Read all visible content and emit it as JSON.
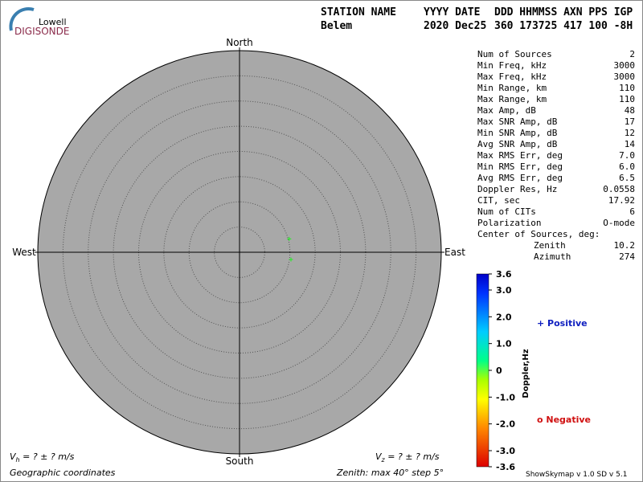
{
  "chart_data": {
    "type": "skymap",
    "logo": {
      "line1": "Lowell",
      "line2": "DIGISONDE"
    },
    "header": {
      "columns": [
        "STATION NAME",
        "YYYY DATE",
        "DDD HHMMSS AXN PPS IGP"
      ],
      "values": [
        "Belem",
        "2020 Dec25",
        "360 173725 417 100 -8H"
      ]
    },
    "compass": {
      "north": "North",
      "south": "South",
      "east": "East",
      "west": "West"
    },
    "stats": [
      {
        "label": "Num of Sources",
        "value": 2
      },
      {
        "label": "Min Freq, kHz",
        "value": 3000
      },
      {
        "label": "Max Freq, kHz",
        "value": 3000
      },
      {
        "label": "Min Range, km",
        "value": 110
      },
      {
        "label": "Max Range, km",
        "value": 110
      },
      {
        "label": "Max Amp, dB",
        "value": 48
      },
      {
        "label": "Max SNR Amp, dB",
        "value": 17
      },
      {
        "label": "Min SNR Amp, dB",
        "value": 12
      },
      {
        "label": "Avg SNR Amp, dB",
        "value": 14
      },
      {
        "label": "Max RMS Err, deg",
        "value": "7.0"
      },
      {
        "label": "Min RMS Err, deg",
        "value": "6.0"
      },
      {
        "label": "Avg RMS Err, deg",
        "value": 6.5
      },
      {
        "label": "Doppler Res, Hz",
        "value": 0.0558
      },
      {
        "label": "CIT, sec",
        "value": 17.92
      },
      {
        "label": "Num of CITs",
        "value": 6
      },
      {
        "label": "Polarization",
        "value": "O-mode"
      }
    ],
    "center": {
      "label": "Center of Sources, deg:",
      "zenith": {
        "label": "Zenith",
        "value": 10.2
      },
      "azimuth": {
        "label": "Azimuth",
        "value": 274
      }
    },
    "colorbar": {
      "title": "Doppler,Hz",
      "lim": [
        -3.6,
        3.6
      ],
      "ticks": [
        {
          "value": 3.6,
          "label": "3.6"
        },
        {
          "value": 3,
          "label": "3.0"
        },
        {
          "value": 2,
          "label": "2.0"
        },
        {
          "value": 1,
          "label": "1.0"
        },
        0,
        {
          "value": -1,
          "label": "-1.0"
        },
        {
          "value": -2,
          "label": "-2.0"
        },
        {
          "value": -3,
          "label": "-3.0"
        },
        {
          "value": -3.6,
          "label": "-3.6"
        }
      ]
    },
    "legend": {
      "positive": "+ Positive",
      "negative": "o Negative"
    },
    "sources": [
      {
        "zenith": 10.2,
        "azimuth": 75,
        "color": "#22ee22"
      },
      {
        "zenith": 10.3,
        "azimuth": 98,
        "color": "#22ee22"
      }
    ],
    "footer": {
      "vh": {
        "symbol": "V",
        "sub": "h",
        "text": " =  ? ±  ? m/s"
      },
      "vz": {
        "symbol": "V",
        "sub": "z",
        "text": " =  ? ±  ? m/s"
      },
      "coords": "Geographic coordinates",
      "zenith": {
        "prefix": "Zenith: max ",
        "max": 40,
        "mid": "°  step ",
        "step": 5,
        "suffix": "°"
      },
      "version": "ShowSkymap v 1.0  SD v 5.1"
    }
  }
}
